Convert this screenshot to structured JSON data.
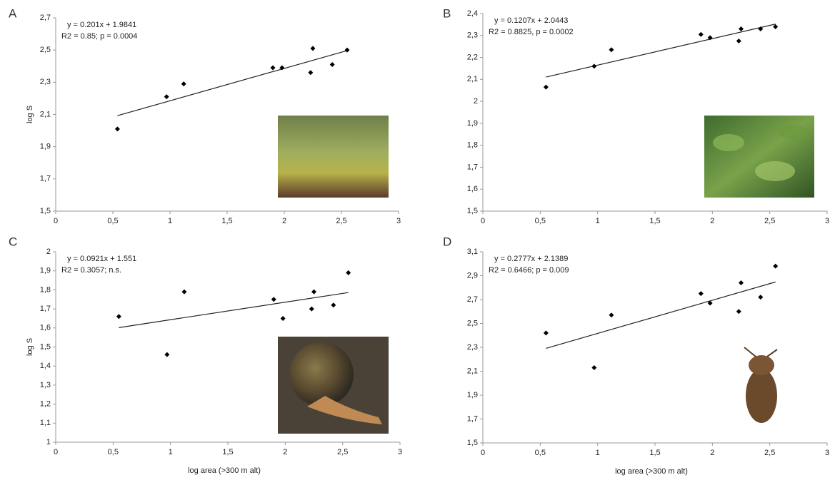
{
  "chart_data": [
    {
      "type": "scatter",
      "label": "A",
      "annotations": [
        "y = 0.201x + 1.9841",
        "R2 = 0.85; p = 0.0004"
      ],
      "ylabel": "log S",
      "color": "#000000",
      "x": [
        0.54,
        0.97,
        1.12,
        1.9,
        1.98,
        2.23,
        2.25,
        2.42,
        2.55
      ],
      "values": [
        2.01,
        2.21,
        2.29,
        2.39,
        2.39,
        2.36,
        2.51,
        2.41,
        2.5
      ],
      "fit": {
        "slope": 0.201,
        "intercept": 1.9841
      },
      "xlim": [
        0,
        3
      ],
      "ylim": [
        1.5,
        2.7
      ],
      "xticks": [
        0,
        {
          "value": 0.5,
          "label": "0,5"
        },
        1,
        {
          "value": 1.5,
          "label": "1,5"
        },
        2,
        {
          "value": 2.5,
          "label": "2,5"
        },
        3
      ],
      "yticks": [
        {
          "value": 1.5,
          "label": "1,5"
        },
        {
          "value": 1.7,
          "label": "1,7"
        },
        {
          "value": 1.9,
          "label": "1,9"
        },
        {
          "value": 2.1,
          "label": "2,1"
        },
        {
          "value": 2.3,
          "label": "2,3"
        },
        {
          "value": 2.5,
          "label": "2,5"
        },
        {
          "value": 2.7,
          "label": "2,7"
        }
      ]
    },
    {
      "type": "scatter",
      "label": "B",
      "annotations": [
        "y = 0.1207x + 2.0443",
        "R2 = 0.8825, p = 0.0002"
      ],
      "color": "#000000",
      "x": [
        0.55,
        0.97,
        1.12,
        1.9,
        1.98,
        2.23,
        2.25,
        2.42,
        2.55
      ],
      "values": [
        2.065,
        2.16,
        2.235,
        2.305,
        2.29,
        2.275,
        2.33,
        2.33,
        2.34
      ],
      "fit": {
        "slope": 0.1207,
        "intercept": 2.0443
      },
      "xlim": [
        0,
        3
      ],
      "ylim": [
        1.5,
        2.4
      ],
      "xticks": [
        0,
        {
          "value": 0.5,
          "label": "0,5"
        },
        1,
        {
          "value": 1.5,
          "label": "1,5"
        },
        2,
        {
          "value": 2.5,
          "label": "2,5"
        },
        3
      ],
      "yticks": [
        {
          "value": 1.5,
          "label": "1,5"
        },
        {
          "value": 1.6,
          "label": "1,6"
        },
        {
          "value": 1.7,
          "label": "1,7"
        },
        {
          "value": 1.8,
          "label": "1,8"
        },
        {
          "value": 1.9,
          "label": "1,9"
        },
        2,
        {
          "value": 2.1,
          "label": "2,1"
        },
        {
          "value": 2.2,
          "label": "2,2"
        },
        {
          "value": 2.3,
          "label": "2,3"
        },
        {
          "value": 2.4,
          "label": "2,4"
        }
      ]
    },
    {
      "type": "scatter",
      "label": "C",
      "annotations": [
        "y = 0.0921x + 1.551",
        "R2 = 0.3057; n.s."
      ],
      "ylabel": "log S",
      "xlabel": "log area (>300 m alt)",
      "color": "#000000",
      "x": [
        0.55,
        0.97,
        1.12,
        1.9,
        1.98,
        2.23,
        2.25,
        2.42,
        2.55
      ],
      "values": [
        1.66,
        1.46,
        1.79,
        1.75,
        1.65,
        1.7,
        1.79,
        1.72,
        1.89
      ],
      "fit": {
        "slope": 0.0921,
        "intercept": 1.551
      },
      "xlim": [
        0,
        3
      ],
      "ylim": [
        1,
        2
      ],
      "xticks": [
        0,
        {
          "value": 0.5,
          "label": "0,5"
        },
        1,
        {
          "value": 1.5,
          "label": "1,5"
        },
        2,
        {
          "value": 2.5,
          "label": "2,5"
        },
        3
      ],
      "yticks": [
        1,
        {
          "value": 1.1,
          "label": "1,1"
        },
        {
          "value": 1.2,
          "label": "1,2"
        },
        {
          "value": 1.3,
          "label": "1,3"
        },
        {
          "value": 1.4,
          "label": "1,4"
        },
        {
          "value": 1.5,
          "label": "1,5"
        },
        {
          "value": 1.6,
          "label": "1,6"
        },
        {
          "value": 1.7,
          "label": "1,7"
        },
        {
          "value": 1.8,
          "label": "1,8"
        },
        {
          "value": 1.9,
          "label": "1,9"
        },
        2
      ]
    },
    {
      "type": "scatter",
      "label": "D",
      "annotations": [
        "y = 0.2777x + 2.1389",
        "R2 = 0.6466; p = 0.009"
      ],
      "xlabel": "log area (>300 m alt)",
      "color": "#000000",
      "x": [
        0.55,
        0.97,
        1.12,
        1.9,
        1.98,
        2.23,
        2.25,
        2.42,
        2.55
      ],
      "values": [
        2.42,
        2.13,
        2.57,
        2.75,
        2.67,
        2.6,
        2.84,
        2.72,
        2.98
      ],
      "fit": {
        "slope": 0.2777,
        "intercept": 2.1389
      },
      "xlim": [
        0,
        3
      ],
      "ylim": [
        1.5,
        3.1
      ],
      "xticks": [
        0,
        {
          "value": 0.5,
          "label": "0,5"
        },
        1,
        {
          "value": 1.5,
          "label": "1,5"
        },
        2,
        {
          "value": 2.5,
          "label": "2,5"
        },
        3
      ],
      "yticks": [
        {
          "value": 1.5,
          "label": "1,5"
        },
        {
          "value": 1.7,
          "label": "1,7"
        },
        {
          "value": 1.9,
          "label": "1,9"
        },
        {
          "value": 2.1,
          "label": "2,1"
        },
        {
          "value": 2.3,
          "label": "2,3"
        },
        {
          "value": 2.5,
          "label": "2,5"
        },
        {
          "value": 2.7,
          "label": "2,7"
        },
        {
          "value": 2.9,
          "label": "2,9"
        },
        {
          "value": 3.1,
          "label": "3,1"
        }
      ]
    }
  ]
}
